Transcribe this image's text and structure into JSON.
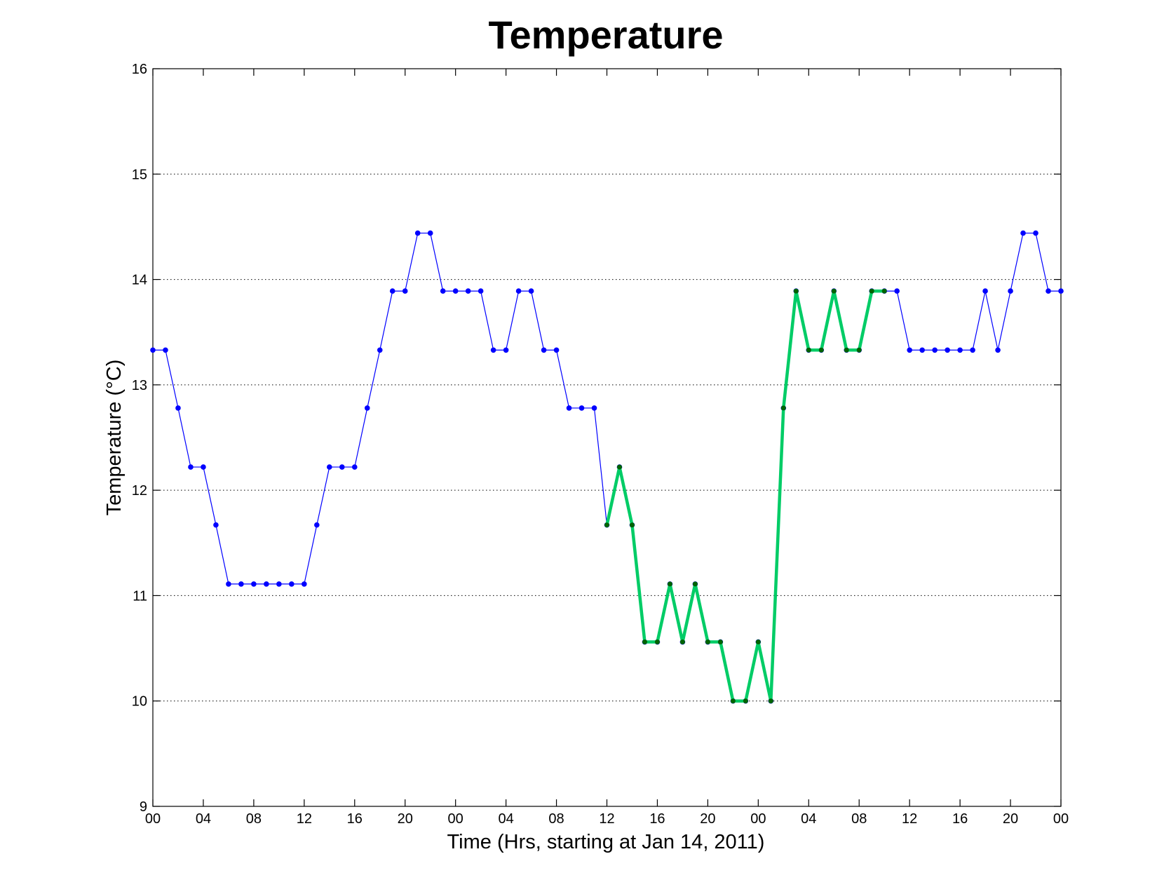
{
  "chart_data": {
    "type": "line",
    "title": "Temperature",
    "xlabel": "Time (Hrs, starting at Jan 14, 2011)",
    "ylabel": "Temperature (°C)",
    "xlim": [
      0,
      72
    ],
    "ylim": [
      9,
      16
    ],
    "x_ticks": [
      0,
      4,
      8,
      12,
      16,
      20,
      24,
      28,
      32,
      36,
      40,
      44,
      48,
      52,
      56,
      60,
      64,
      68,
      72
    ],
    "x_tick_labels": [
      "00",
      "04",
      "08",
      "12",
      "16",
      "20",
      "00",
      "04",
      "08",
      "12",
      "16",
      "20",
      "00",
      "04",
      "08",
      "12",
      "16",
      "20",
      "00"
    ],
    "y_ticks": [
      9,
      10,
      11,
      12,
      13,
      14,
      15,
      16
    ],
    "y_tick_labels": [
      "9",
      "10",
      "11",
      "12",
      "13",
      "14",
      "15",
      "16"
    ],
    "grid": "horizontal-dotted",
    "series": [
      {
        "color": "#0000ff",
        "marker_color": "#0000ff",
        "line_width": "thin",
        "x": [
          0,
          1,
          2,
          3,
          4,
          5,
          6,
          7,
          8,
          9,
          10,
          11,
          12,
          13,
          14,
          15,
          16,
          17,
          18,
          19,
          20,
          21,
          22,
          23,
          24,
          25,
          26,
          27,
          28,
          29,
          30,
          31,
          32,
          33,
          34,
          35,
          36,
          37,
          38,
          39,
          40,
          41,
          42,
          43,
          44,
          45,
          46,
          47,
          48,
          49,
          50,
          51,
          52,
          53,
          54,
          55,
          56,
          57,
          58,
          59,
          60,
          61,
          62,
          63,
          64,
          65,
          66,
          67,
          68,
          69,
          70,
          71,
          72
        ],
        "y": [
          13.33,
          13.33,
          12.78,
          12.22,
          12.22,
          11.67,
          11.11,
          11.11,
          11.11,
          11.11,
          11.11,
          11.11,
          11.11,
          11.67,
          12.22,
          12.22,
          12.22,
          12.78,
          13.33,
          13.89,
          13.89,
          14.44,
          14.44,
          13.89,
          13.89,
          13.89,
          13.89,
          13.33,
          13.33,
          13.89,
          13.89,
          13.33,
          13.33,
          12.78,
          12.78,
          12.78,
          11.67,
          12.22,
          11.67,
          10.56,
          10.56,
          11.11,
          10.56,
          11.11,
          10.56,
          10.56,
          10.0,
          10.0,
          10.56,
          10.0,
          12.78,
          13.89,
          13.33,
          13.33,
          13.89,
          13.33,
          13.33,
          13.89,
          13.89,
          13.89,
          13.33,
          13.33,
          13.33,
          13.33,
          13.33,
          13.33,
          13.89,
          13.33,
          13.89,
          14.44,
          14.44,
          13.89,
          13.89
        ]
      },
      {
        "color": "#00cc66",
        "marker_color": "#006400",
        "line_width": "thick",
        "x": [
          36,
          37,
          38,
          39,
          40,
          41,
          42,
          43,
          44,
          45,
          46,
          47,
          48,
          49,
          50,
          51,
          52,
          53,
          54,
          55,
          56,
          57,
          58
        ],
        "y": [
          11.67,
          12.22,
          11.67,
          10.56,
          10.56,
          11.11,
          10.56,
          11.11,
          10.56,
          10.56,
          10.0,
          10.0,
          10.56,
          10.0,
          12.78,
          13.89,
          13.33,
          13.33,
          13.89,
          13.33,
          13.33,
          13.89,
          13.89
        ]
      }
    ]
  }
}
